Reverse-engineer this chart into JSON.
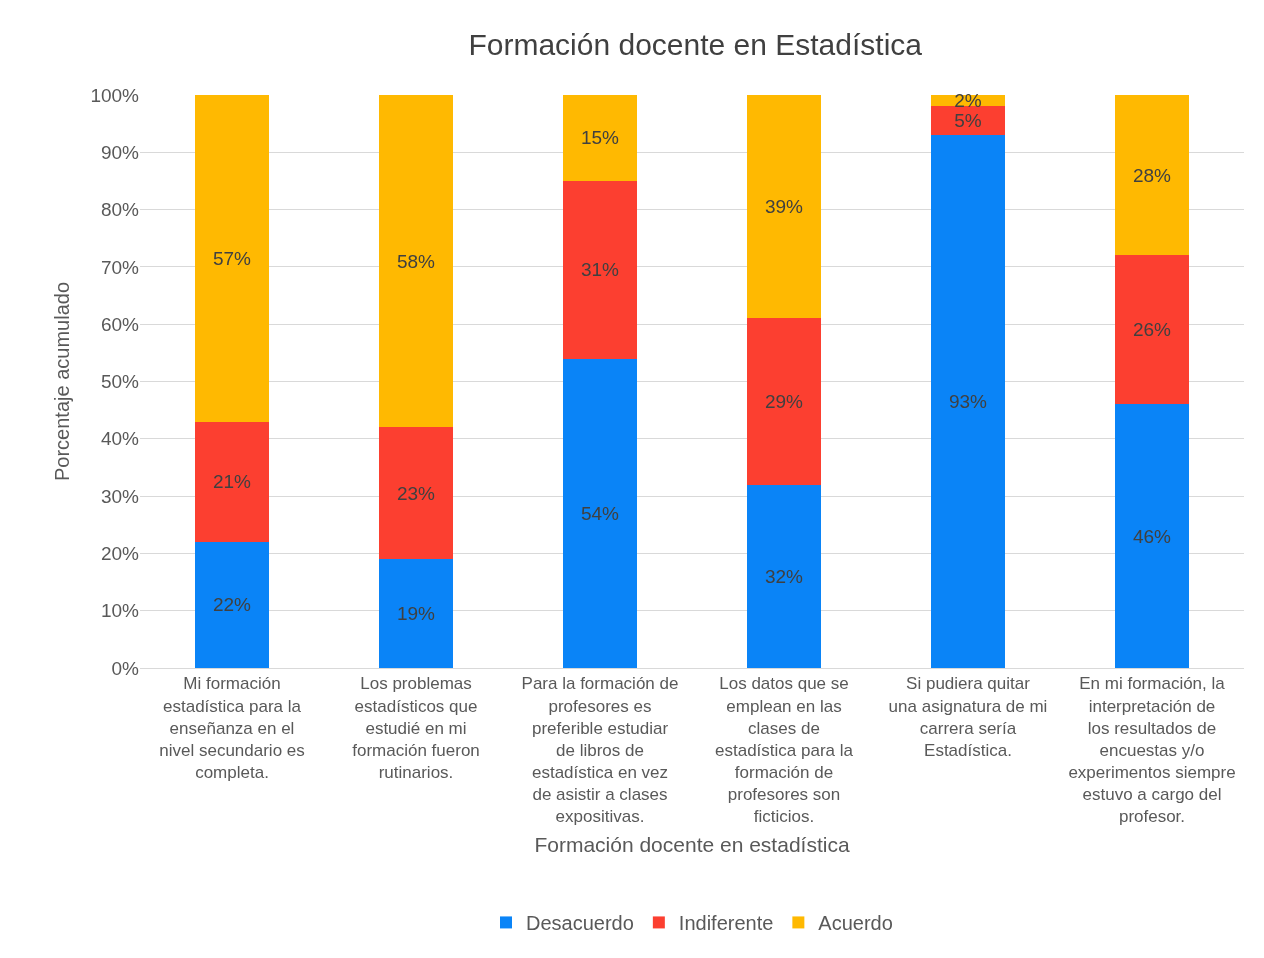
{
  "chart_data": {
    "type": "bar",
    "stacked": true,
    "title": "Formación docente en Estadística",
    "xlabel": "Formación docente en estadística",
    "ylabel": "Porcentaje acumulado",
    "categories": [
      "Mi formación estadística para la enseñanza en el nivel secundario es completa.",
      "Los problemas estadísticos que estudié en mi formación fueron rutinarios.",
      "Para la formación de profesores es preferible estudiar de libros de estadística en vez de asistir a clases expositivas.",
      "Los datos que se emplean en las clases de estadística para la formación de profesores son ficticios.",
      "Si pudiera quitar una asignatura de mi carrera sería Estadística.",
      "En mi formación, la interpretación de los resultados de encuestas y/o experimentos siempre estuvo a cargo del profesor."
    ],
    "series": [
      {
        "name": "Desacuerdo",
        "color": "#0a84f7",
        "values": [
          22,
          19,
          54,
          32,
          93,
          46
        ],
        "value_labels": [
          "22%",
          "19%",
          "54%",
          "32%",
          "93%",
          "46%"
        ]
      },
      {
        "name": "Indiferente",
        "color": "#fc3f30",
        "values": [
          21,
          23,
          31,
          29,
          5,
          26
        ],
        "value_labels": [
          "21%",
          "23%",
          "31%",
          "29%",
          "5%",
          "26%"
        ]
      },
      {
        "name": "Acuerdo",
        "color": "#ffb901",
        "values": [
          57,
          58,
          15,
          39,
          2,
          28
        ],
        "value_labels": [
          "57%",
          "58%",
          "15%",
          "39%",
          "2%",
          "28%"
        ]
      }
    ],
    "ylim": [
      0,
      100
    ],
    "yticks": [
      {
        "value": 0,
        "label": "0%"
      },
      {
        "value": 10,
        "label": "10%"
      },
      {
        "value": 20,
        "label": "20%"
      },
      {
        "value": 30,
        "label": "30%"
      },
      {
        "value": 40,
        "label": "40%"
      },
      {
        "value": 50,
        "label": "50%"
      },
      {
        "value": 60,
        "label": "60%"
      },
      {
        "value": 70,
        "label": "70%"
      },
      {
        "value": 80,
        "label": "80%"
      },
      {
        "value": 90,
        "label": "90%"
      },
      {
        "value": 100,
        "label": "100%"
      }
    ],
    "grid": "y",
    "legend": "bottom"
  }
}
